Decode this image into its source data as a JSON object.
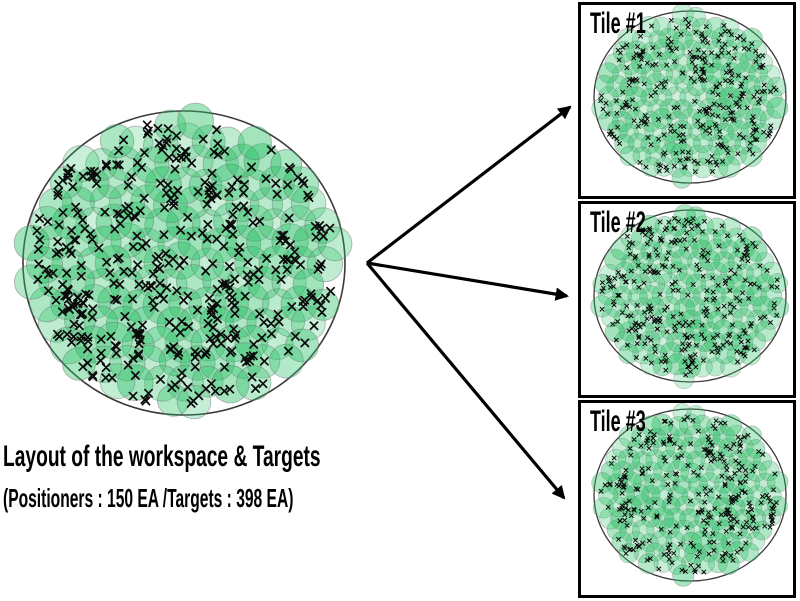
{
  "caption": {
    "line1": "Layout of the workspace & Targets",
    "line2": "(Positioners : 150 EA /Targets : 398 EA)"
  },
  "tiles": [
    {
      "label": "Tile #1"
    },
    {
      "label": "Tile #2"
    },
    {
      "label": "Tile #3"
    }
  ],
  "figure": {
    "workspace": {
      "positioners": 150,
      "targets": 398
    },
    "colors": {
      "background": "#ffffff",
      "positioner_fill": "#2ac166",
      "positioner_stroke": "#6b6b6b",
      "workspace_outline": "#3a3a3a",
      "target_mark": "#0a0a0a",
      "arrow": "#000000",
      "tile_border": "#000000",
      "text": "#000000"
    }
  }
}
